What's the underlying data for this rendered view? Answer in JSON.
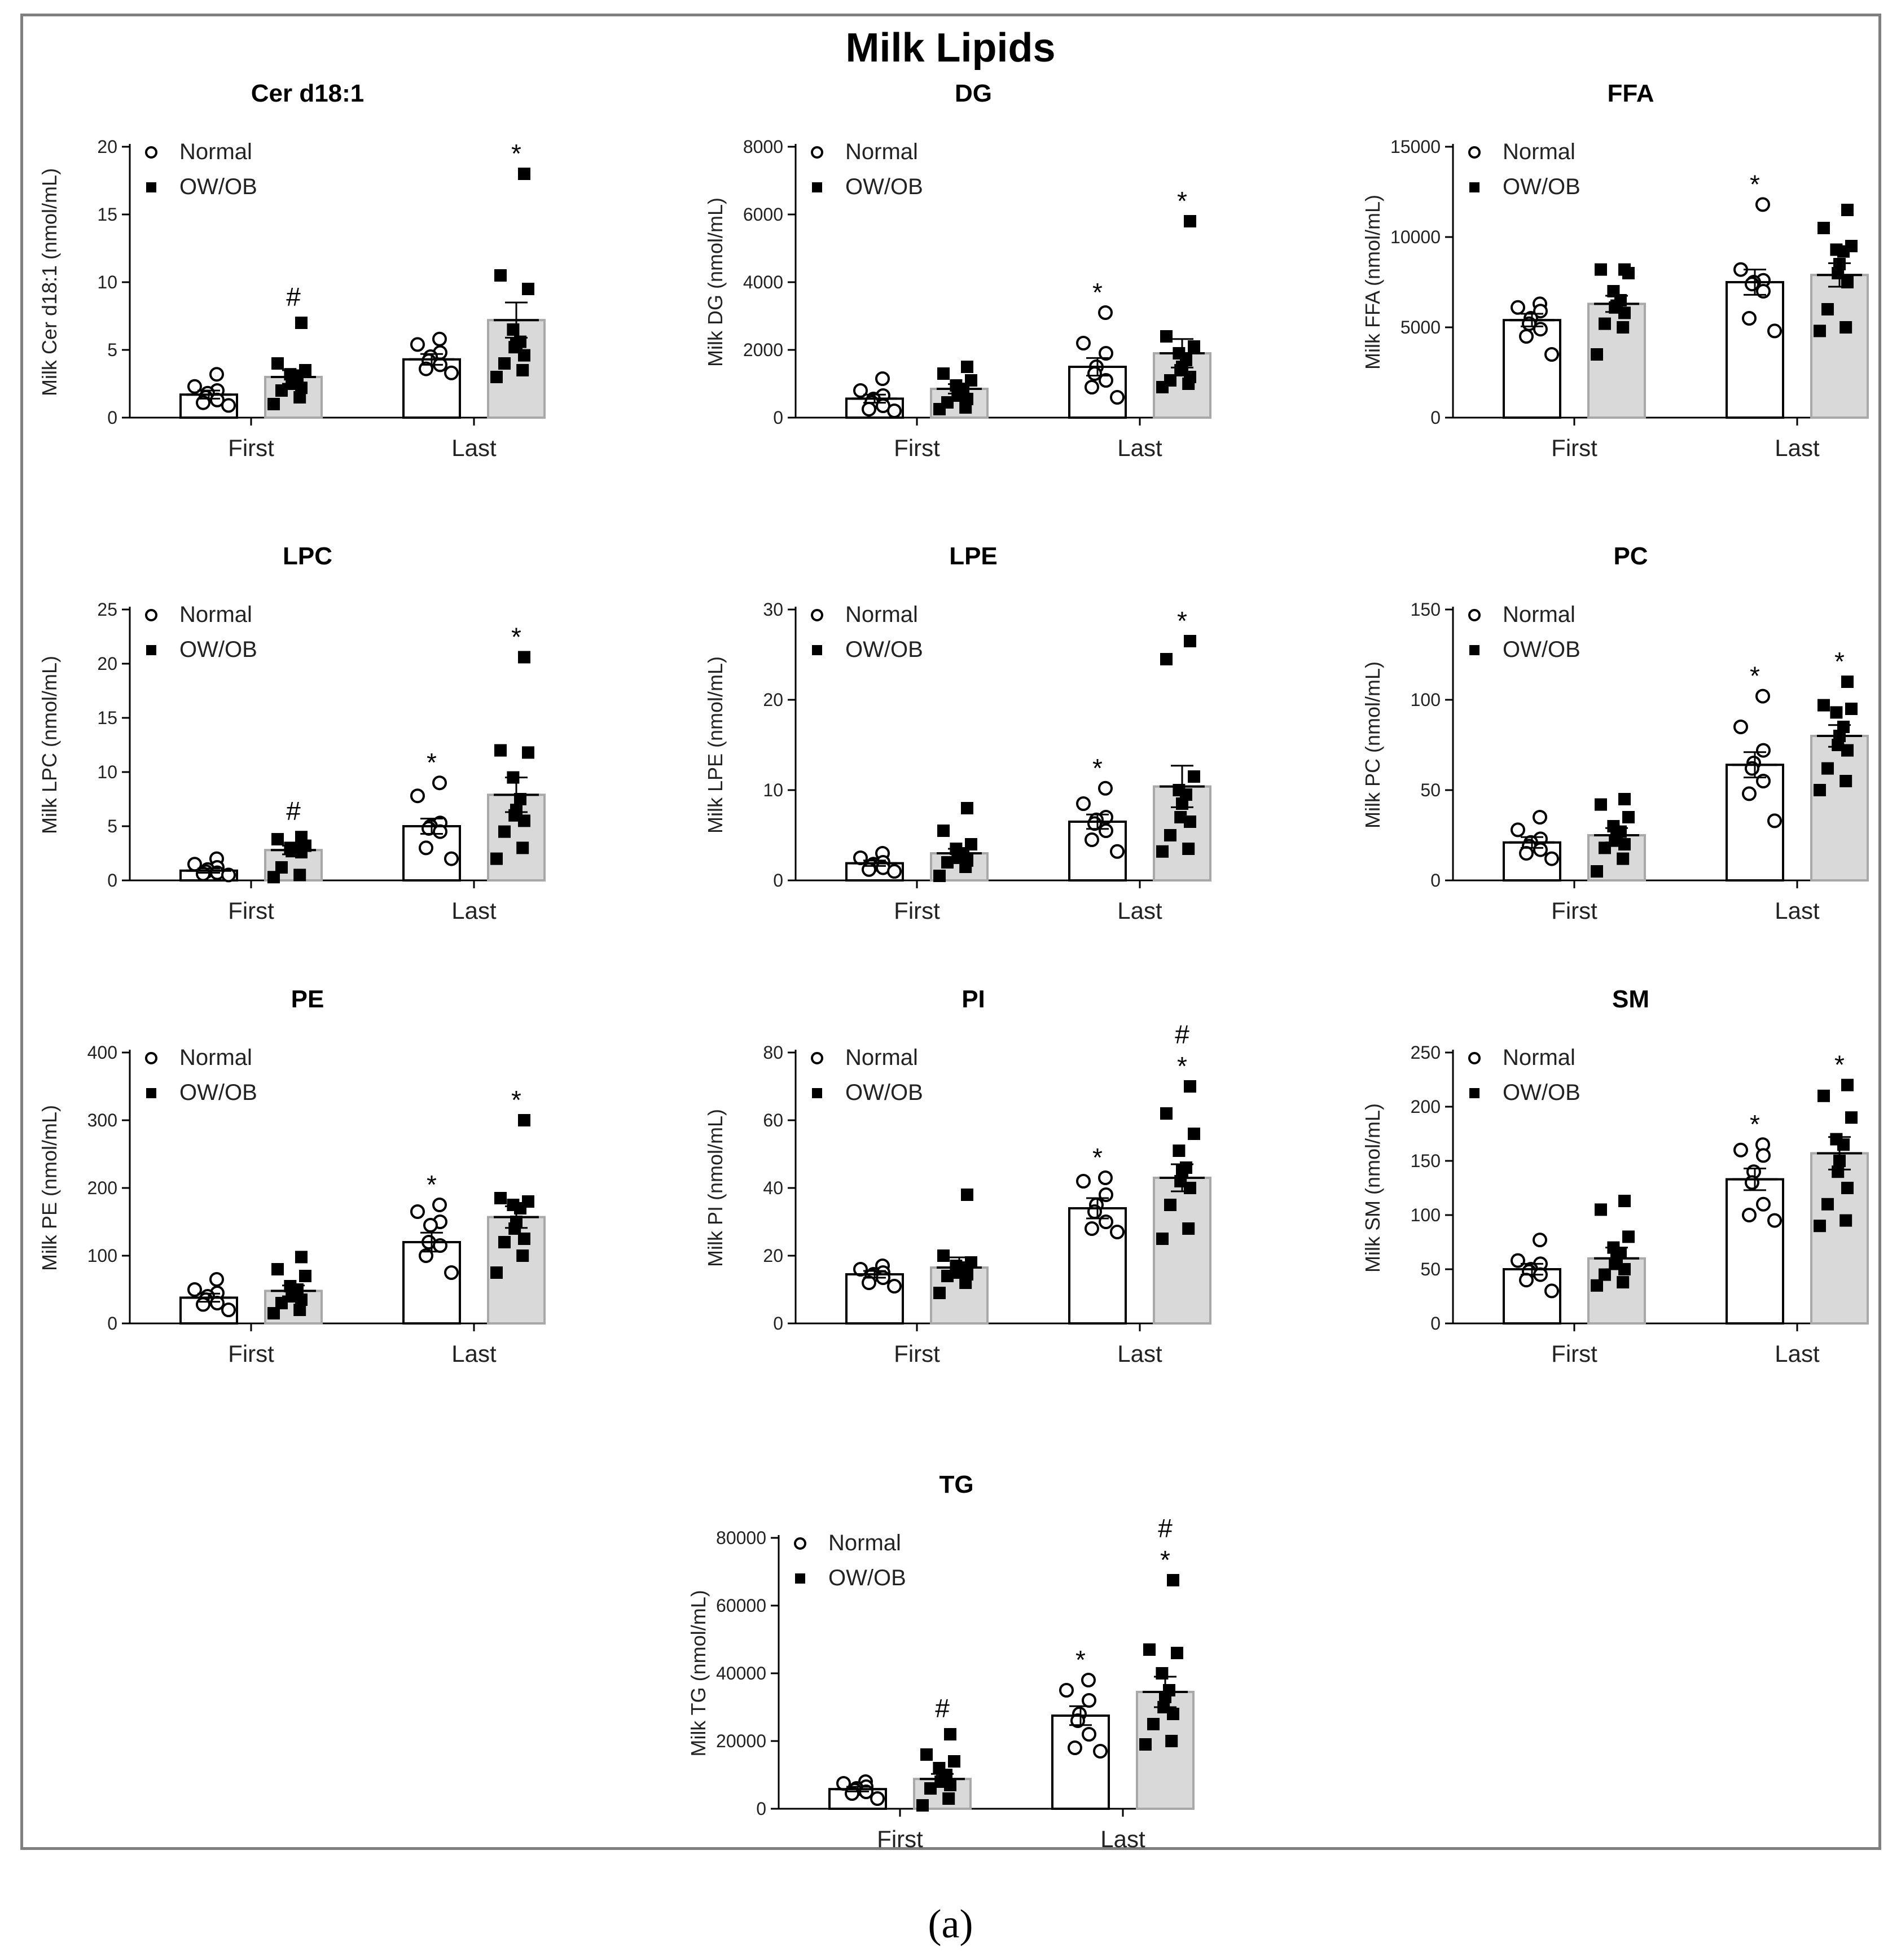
{
  "figure": {
    "title": "Milk Lipids",
    "caption": "(a)",
    "colors": {
      "normal_bar": "#ffffff",
      "owob_bar": "#d9d9d9",
      "axis": "#000000"
    }
  },
  "chart_data": [
    {
      "id": "cer",
      "type": "bar",
      "title": "Cer d18:1",
      "ylabel": "Milk Cer d18:1 (nmol/mL)",
      "ylim": [
        0,
        20
      ],
      "yticks": [
        0,
        5,
        10,
        15,
        20
      ],
      "categories": [
        "First",
        "Last"
      ],
      "series": [
        {
          "name": "Normal",
          "values": [
            1.7,
            4.3
          ],
          "sem": [
            0.3,
            0.4
          ],
          "points": [
            [
              3.2,
              2.3,
              2.0,
              1.8,
              1.5,
              1.3,
              1.1,
              0.9
            ],
            [
              5.8,
              5.4,
              4.8,
              4.5,
              4.2,
              3.9,
              3.6,
              3.3
            ]
          ],
          "sig": [
            "",
            ""
          ]
        },
        {
          "name": "OW/OB",
          "values": [
            3.0,
            7.2
          ],
          "sem": [
            0.5,
            1.3
          ],
          "points": [
            [
              7.0,
              4.0,
              3.5,
              3.2,
              3.0,
              2.8,
              2.5,
              2.2,
              2.0,
              1.5,
              1.0
            ],
            [
              18.0,
              10.5,
              9.5,
              6.5,
              5.6,
              5.4,
              5.2,
              4.6,
              4.0,
              3.5,
              3.0
            ]
          ],
          "sig": [
            "#",
            "*"
          ]
        }
      ]
    },
    {
      "id": "dg",
      "type": "bar",
      "title": "DG",
      "ylabel": "Milk DG (nmol/mL)",
      "ylim": [
        0,
        8000
      ],
      "yticks": [
        0,
        2000,
        4000,
        6000,
        8000
      ],
      "categories": [
        "First",
        "Last"
      ],
      "series": [
        {
          "name": "Normal",
          "values": [
            560,
            1500
          ],
          "sem": [
            120,
            260
          ],
          "points": [
            [
              1150,
              800,
              650,
              550,
              450,
              350,
              250,
              200
            ],
            [
              3100,
              2200,
              1900,
              1500,
              1300,
              1100,
              900,
              600
            ]
          ],
          "sig": [
            "",
            "*"
          ]
        },
        {
          "name": "OW/OB",
          "values": [
            850,
            1900
          ],
          "sem": [
            140,
            420
          ],
          "points": [
            [
              1500,
              1300,
              1100,
              950,
              850,
              750,
              650,
              550,
              450,
              300,
              250
            ],
            [
              5800,
              2400,
              2100,
              1900,
              1700,
              1500,
              1400,
              1200,
              1100,
              1000,
              900
            ]
          ],
          "sig": [
            "",
            "*"
          ]
        }
      ]
    },
    {
      "id": "ffa",
      "type": "bar",
      "title": "FFA",
      "ylabel": "Milk FFA (nmol/mL)",
      "ylim": [
        0,
        15000
      ],
      "yticks": [
        0,
        5000,
        10000,
        15000
      ],
      "categories": [
        "First",
        "Last"
      ],
      "series": [
        {
          "name": "Normal",
          "values": [
            5400,
            7500
          ],
          "sem": [
            350,
            700
          ],
          "points": [
            [
              6300,
              6100,
              5900,
              5500,
              5200,
              4900,
              4500,
              3500
            ],
            [
              11800,
              8200,
              7600,
              7500,
              7400,
              7000,
              5500,
              4800
            ]
          ],
          "sig": [
            "",
            "*"
          ]
        },
        {
          "name": "OW/OB",
          "values": [
            6300,
            7900
          ],
          "sem": [
            450,
            650
          ],
          "points": [
            [
              8200,
              8200,
              8000,
              7000,
              6500,
              6200,
              6100,
              5800,
              5200,
              5000,
              3500
            ],
            [
              11500,
              10500,
              9500,
              9300,
              9200,
              8500,
              8000,
              7500,
              6000,
              5000,
              4800
            ]
          ],
          "sig": [
            "",
            ""
          ]
        }
      ]
    },
    {
      "id": "lpc",
      "type": "bar",
      "title": "LPC",
      "ylabel": "Milk LPC (nmol/mL)",
      "ylim": [
        0,
        25
      ],
      "yticks": [
        0,
        5,
        10,
        15,
        20,
        25
      ],
      "categories": [
        "First",
        "Last"
      ],
      "series": [
        {
          "name": "Normal",
          "values": [
            0.9,
            5.0
          ],
          "sem": [
            0.2,
            0.7
          ],
          "points": [
            [
              2.0,
              1.5,
              1.2,
              1.0,
              0.8,
              0.7,
              0.6,
              0.5
            ],
            [
              9.0,
              7.8,
              5.3,
              5.0,
              4.8,
              4.5,
              3.0,
              2.0
            ]
          ],
          "sig": [
            "",
            "*"
          ]
        },
        {
          "name": "OW/OB",
          "values": [
            2.8,
            7.9
          ],
          "sem": [
            0.4,
            1.6
          ],
          "points": [
            [
              4.0,
              3.8,
              3.2,
              3.0,
              2.9,
              2.8,
              2.7,
              2.6,
              1.2,
              0.5,
              0.3
            ],
            [
              20.6,
              12.0,
              11.8,
              9.5,
              7.5,
              6.5,
              6.0,
              5.5,
              4.5,
              3.0,
              2.0
            ]
          ],
          "sig": [
            "#",
            "*"
          ]
        }
      ]
    },
    {
      "id": "lpe",
      "type": "bar",
      "title": "LPE",
      "ylabel": "Milk LPE (nmol/mL)",
      "ylim": [
        0,
        30
      ],
      "yticks": [
        0,
        10,
        20,
        30
      ],
      "categories": [
        "First",
        "Last"
      ],
      "series": [
        {
          "name": "Normal",
          "values": [
            1.9,
            6.5
          ],
          "sem": [
            0.3,
            0.8
          ],
          "points": [
            [
              3.0,
              2.5,
              2.0,
              1.8,
              1.6,
              1.4,
              1.2,
              1.0
            ],
            [
              10.2,
              8.5,
              7.0,
              6.7,
              6.3,
              5.5,
              4.5,
              3.2
            ]
          ],
          "sig": [
            "",
            "*"
          ]
        },
        {
          "name": "OW/OB",
          "values": [
            3.0,
            10.4
          ],
          "sem": [
            0.5,
            2.3
          ],
          "points": [
            [
              8.0,
              5.5,
              4.0,
              3.5,
              3.0,
              2.8,
              2.5,
              2.2,
              2.0,
              1.5,
              0.5
            ],
            [
              26.5,
              24.5,
              11.5,
              10.0,
              9.5,
              8.5,
              7.0,
              6.5,
              5.0,
              3.5,
              3.2
            ]
          ],
          "sig": [
            "",
            "*"
          ]
        }
      ]
    },
    {
      "id": "pc",
      "type": "bar",
      "title": "PC",
      "ylabel": "Milk PC (nmol/mL)",
      "ylim": [
        0,
        150
      ],
      "yticks": [
        0,
        50,
        100,
        150
      ],
      "categories": [
        "First",
        "Last"
      ],
      "series": [
        {
          "name": "Normal",
          "values": [
            21,
            64
          ],
          "sem": [
            3,
            7
          ],
          "points": [
            [
              35,
              28,
              23,
              21,
              19,
              17,
              15,
              12
            ],
            [
              102,
              85,
              72,
              65,
              62,
              55,
              48,
              33
            ]
          ],
          "sig": [
            "",
            "*"
          ]
        },
        {
          "name": "OW/OB",
          "values": [
            25,
            80
          ],
          "sem": [
            4,
            6
          ],
          "points": [
            [
              45,
              42,
              35,
              30,
              27,
              25,
              22,
              20,
              18,
              12,
              5
            ],
            [
              110,
              97,
              95,
              93,
              85,
              80,
              75,
              72,
              62,
              55,
              50
            ]
          ],
          "sig": [
            "",
            "*"
          ]
        }
      ]
    },
    {
      "id": "pe",
      "type": "bar",
      "title": "PE",
      "ylabel": "Milk PE (nmol/mL)",
      "ylim": [
        0,
        400
      ],
      "yticks": [
        0,
        100,
        200,
        300,
        400
      ],
      "categories": [
        "First",
        "Last"
      ],
      "series": [
        {
          "name": "Normal",
          "values": [
            38,
            120
          ],
          "sem": [
            6,
            14
          ],
          "points": [
            [
              65,
              50,
              45,
              40,
              35,
              30,
              28,
              20
            ],
            [
              175,
              165,
              150,
              145,
              120,
              115,
              100,
              75
            ]
          ],
          "sig": [
            "",
            "*"
          ]
        },
        {
          "name": "OW/OB",
          "values": [
            48,
            157
          ],
          "sem": [
            8,
            16
          ],
          "points": [
            [
              98,
              80,
              70,
              55,
              50,
              45,
              40,
              35,
              30,
              20,
              15
            ],
            [
              300,
              185,
              180,
              175,
              170,
              150,
              140,
              125,
              120,
              100,
              75
            ]
          ],
          "sig": [
            "",
            "*"
          ]
        }
      ]
    },
    {
      "id": "pi",
      "type": "bar",
      "title": "PI",
      "ylabel": "Milk PI (nmol/mL)",
      "ylim": [
        0,
        80
      ],
      "yticks": [
        0,
        20,
        40,
        60,
        80
      ],
      "categories": [
        "First",
        "Last"
      ],
      "series": [
        {
          "name": "Normal",
          "values": [
            14.5,
            34
          ],
          "sem": [
            1,
            3
          ],
          "points": [
            [
              17,
              16,
              15,
              14.5,
              14,
              13.5,
              12,
              11
            ],
            [
              43,
              42,
              38,
              35,
              33,
              30,
              28,
              27
            ]
          ],
          "sig": [
            "",
            "*"
          ]
        },
        {
          "name": "OW/OB",
          "values": [
            16.5,
            43
          ],
          "sem": [
            3,
            4
          ],
          "points": [
            [
              38,
              20,
              18,
              17,
              16.5,
              16,
              15,
              14.5,
              14,
              12,
              9
            ],
            [
              70,
              62,
              56,
              51,
              46,
              45,
              42,
              40,
              35,
              28,
              25
            ]
          ],
          "sig": [
            "",
            "#*"
          ]
        }
      ]
    },
    {
      "id": "sm",
      "type": "bar",
      "title": "SM",
      "ylabel": "Milk SM (nmol/mL)",
      "ylim": [
        0,
        250
      ],
      "yticks": [
        0,
        50,
        100,
        150,
        200,
        250
      ],
      "categories": [
        "First",
        "Last"
      ],
      "series": [
        {
          "name": "Normal",
          "values": [
            50,
            133
          ],
          "sem": [
            5,
            10
          ],
          "points": [
            [
              77,
              58,
              55,
              50,
              48,
              45,
              40,
              30
            ],
            [
              165,
              160,
              155,
              140,
              130,
              110,
              100,
              95
            ]
          ],
          "sig": [
            "",
            "*"
          ]
        },
        {
          "name": "OW/OB",
          "values": [
            60,
            157
          ],
          "sem": [
            10,
            15
          ],
          "points": [
            [
              113,
              105,
              80,
              70,
              65,
              60,
              55,
              50,
              45,
              38,
              35
            ],
            [
              220,
              210,
              190,
              170,
              165,
              150,
              140,
              125,
              110,
              95,
              90
            ]
          ],
          "sig": [
            "",
            "*"
          ]
        }
      ]
    },
    {
      "id": "tg",
      "type": "bar",
      "title": "TG",
      "ylabel": "Milk TG (nmol/mL)",
      "ylim": [
        0,
        80000
      ],
      "yticks": [
        0,
        20000,
        40000,
        60000,
        80000
      ],
      "categories": [
        "First",
        "Last"
      ],
      "series": [
        {
          "name": "Normal",
          "values": [
            5800,
            27500
          ],
          "sem": [
            700,
            2800
          ],
          "points": [
            [
              8000,
              7500,
              6500,
              6000,
              5500,
              5000,
              4500,
              3000
            ],
            [
              38000,
              35000,
              32000,
              28000,
              26000,
              22000,
              18000,
              17000
            ]
          ],
          "sig": [
            "",
            "*"
          ]
        },
        {
          "name": "OW/OB",
          "values": [
            8800,
            34500
          ],
          "sem": [
            1500,
            4500
          ],
          "points": [
            [
              22000,
              16000,
              14000,
              12000,
              10000,
              9000,
              8000,
              7000,
              6000,
              3000,
              1000
            ],
            [
              67500,
              47000,
              46000,
              40000,
              35000,
              33000,
              30000,
              28000,
              25000,
              20000,
              19000
            ]
          ],
          "sig": [
            "#",
            "#*"
          ]
        }
      ]
    }
  ]
}
